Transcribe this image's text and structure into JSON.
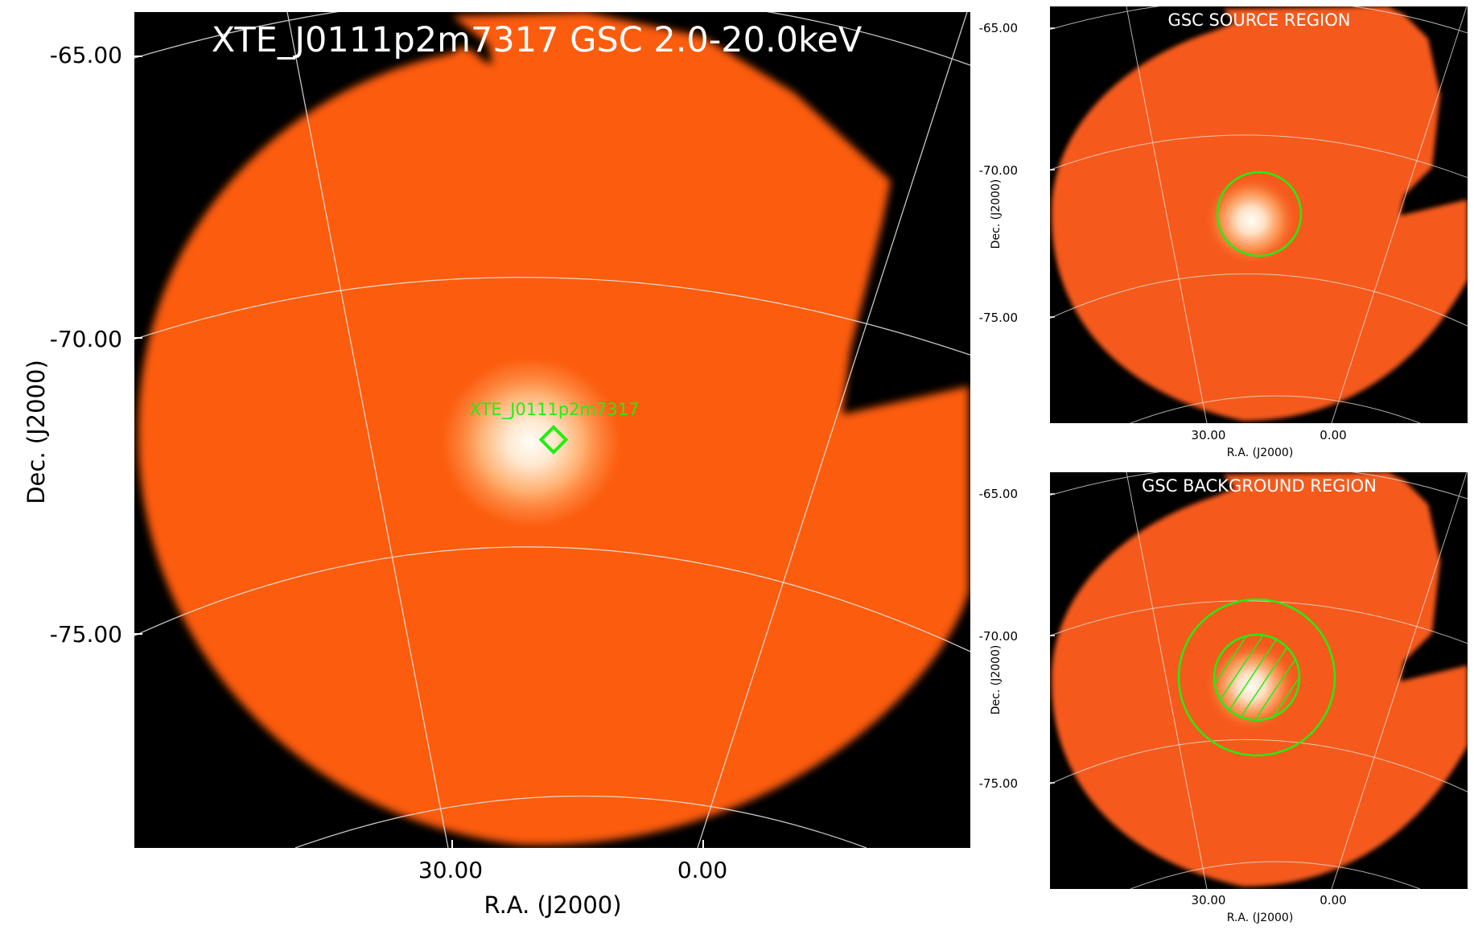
{
  "main": {
    "title": "XTE_J0111p2m7317 GSC 2.0-20.0keV",
    "source_label": "XTE_J0111p2m7317",
    "yticks": [
      "-65.00",
      "-70.00",
      "-75.00"
    ],
    "xticks": [
      "30.00",
      "0.00"
    ],
    "ylabel": "Dec. (J2000)",
    "xlabel": "R.A. (J2000)"
  },
  "source_panel": {
    "title": "GSC SOURCE REGION",
    "yticks": [
      "-65.00",
      "-70.00",
      "-75.00"
    ],
    "xticks": [
      "30.00",
      "0.00"
    ],
    "ylabel": "Dec. (J2000)",
    "xlabel": "R.A. (J2000)"
  },
  "background_panel": {
    "title": "GSC BACKGROUND REGION",
    "yticks": [
      "-65.00",
      "-70.00",
      "-75.00"
    ],
    "xticks": [
      "30.00",
      "0.00"
    ],
    "ylabel": "Dec. (J2000)",
    "xlabel": "R.A. (J2000)"
  },
  "colors": {
    "field": "#fc5b0a",
    "background": "#000000",
    "source_peak": "#fffdf8",
    "region": "#22ee11",
    "grid": "#e8e8e8",
    "title_text": "#ffffff"
  }
}
